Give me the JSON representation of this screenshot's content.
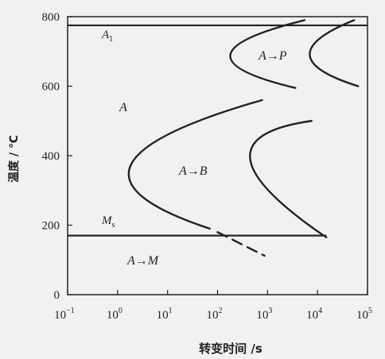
{
  "chart_data": {
    "type": "line",
    "x_label": "转变时间 /s",
    "y_label": "温度 / ℃",
    "xscale": "log",
    "xlim": [
      0.1,
      100000
    ],
    "xticks": [
      {
        "value": 0.1,
        "label": "10",
        "exp": "−1"
      },
      {
        "value": 1,
        "label": "10",
        "exp": "0"
      },
      {
        "value": 10,
        "label": "10",
        "exp": "1"
      },
      {
        "value": 100,
        "label": "10",
        "exp": "2"
      },
      {
        "value": 1000,
        "label": "10",
        "exp": "3"
      },
      {
        "value": 10000,
        "label": "10",
        "exp": "4"
      },
      {
        "value": 100000,
        "label": "10",
        "exp": "5"
      }
    ],
    "ylim": [
      0,
      800
    ],
    "yticks": [
      0,
      200,
      400,
      600,
      800
    ],
    "color": "#222222",
    "series": [
      {
        "x": [
          5500,
          180,
          3600
        ],
        "values": [
          790,
          690,
          595
        ]
      },
      {
        "x": [
          54000,
          7000,
          65000
        ],
        "values": [
          790,
          690,
          600
        ]
      },
      {
        "x": [
          780,
          1.8,
          70
        ],
        "values": [
          560,
          370,
          190
        ]
      },
      {
        "x": [
          7600,
          450,
          15000
        ],
        "values": [
          500,
          390,
          165
        ]
      },
      {
        "x": [
          100,
          870
        ],
        "values": [
          180,
          112
        ],
        "dashed": true
      }
    ],
    "reference_lines": [
      {
        "label": "A",
        "sub": "1",
        "value": 775,
        "x": [
          0.1,
          100000
        ]
      },
      {
        "label": "M",
        "sub": "s",
        "value": 170,
        "x": [
          0.1,
          15000
        ]
      }
    ],
    "annotations": [
      {
        "label": "A",
        "arrow": "→",
        "product": "P"
      },
      {
        "label": "A"
      },
      {
        "label": "A",
        "arrow": "→",
        "product": "B"
      },
      {
        "label": "A",
        "arrow": "→",
        "product": "M"
      }
    ]
  }
}
